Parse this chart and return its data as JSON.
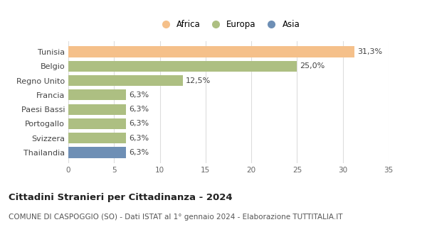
{
  "categories": [
    "Tunisia",
    "Belgio",
    "Regno Unito",
    "Francia",
    "Paesi Bassi",
    "Portogallo",
    "Svizzera",
    "Thailandia"
  ],
  "values": [
    31.3,
    25.0,
    12.5,
    6.3,
    6.3,
    6.3,
    6.3,
    6.3
  ],
  "labels": [
    "31,3%",
    "25,0%",
    "12,5%",
    "6,3%",
    "6,3%",
    "6,3%",
    "6,3%",
    "6,3%"
  ],
  "colors": [
    "#F5C08A",
    "#ADBF82",
    "#ADBF82",
    "#ADBF82",
    "#ADBF82",
    "#ADBF82",
    "#ADBF82",
    "#6E8FB5"
  ],
  "continent_labels": [
    "Africa",
    "Europa",
    "Asia"
  ],
  "continent_colors": [
    "#F5C08A",
    "#ADBF82",
    "#6E8FB5"
  ],
  "xlim": [
    0,
    35
  ],
  "xticks": [
    0,
    5,
    10,
    15,
    20,
    25,
    30,
    35
  ],
  "title": "Cittadini Stranieri per Cittadinanza - 2024",
  "subtitle": "COMUNE DI CASPOGGIO (SO) - Dati ISTAT al 1° gennaio 2024 - Elaborazione TUTTITALIA.IT",
  "title_fontsize": 9.5,
  "subtitle_fontsize": 7.5,
  "bar_height": 0.75,
  "background_color": "#ffffff",
  "grid_color": "#dddddd"
}
